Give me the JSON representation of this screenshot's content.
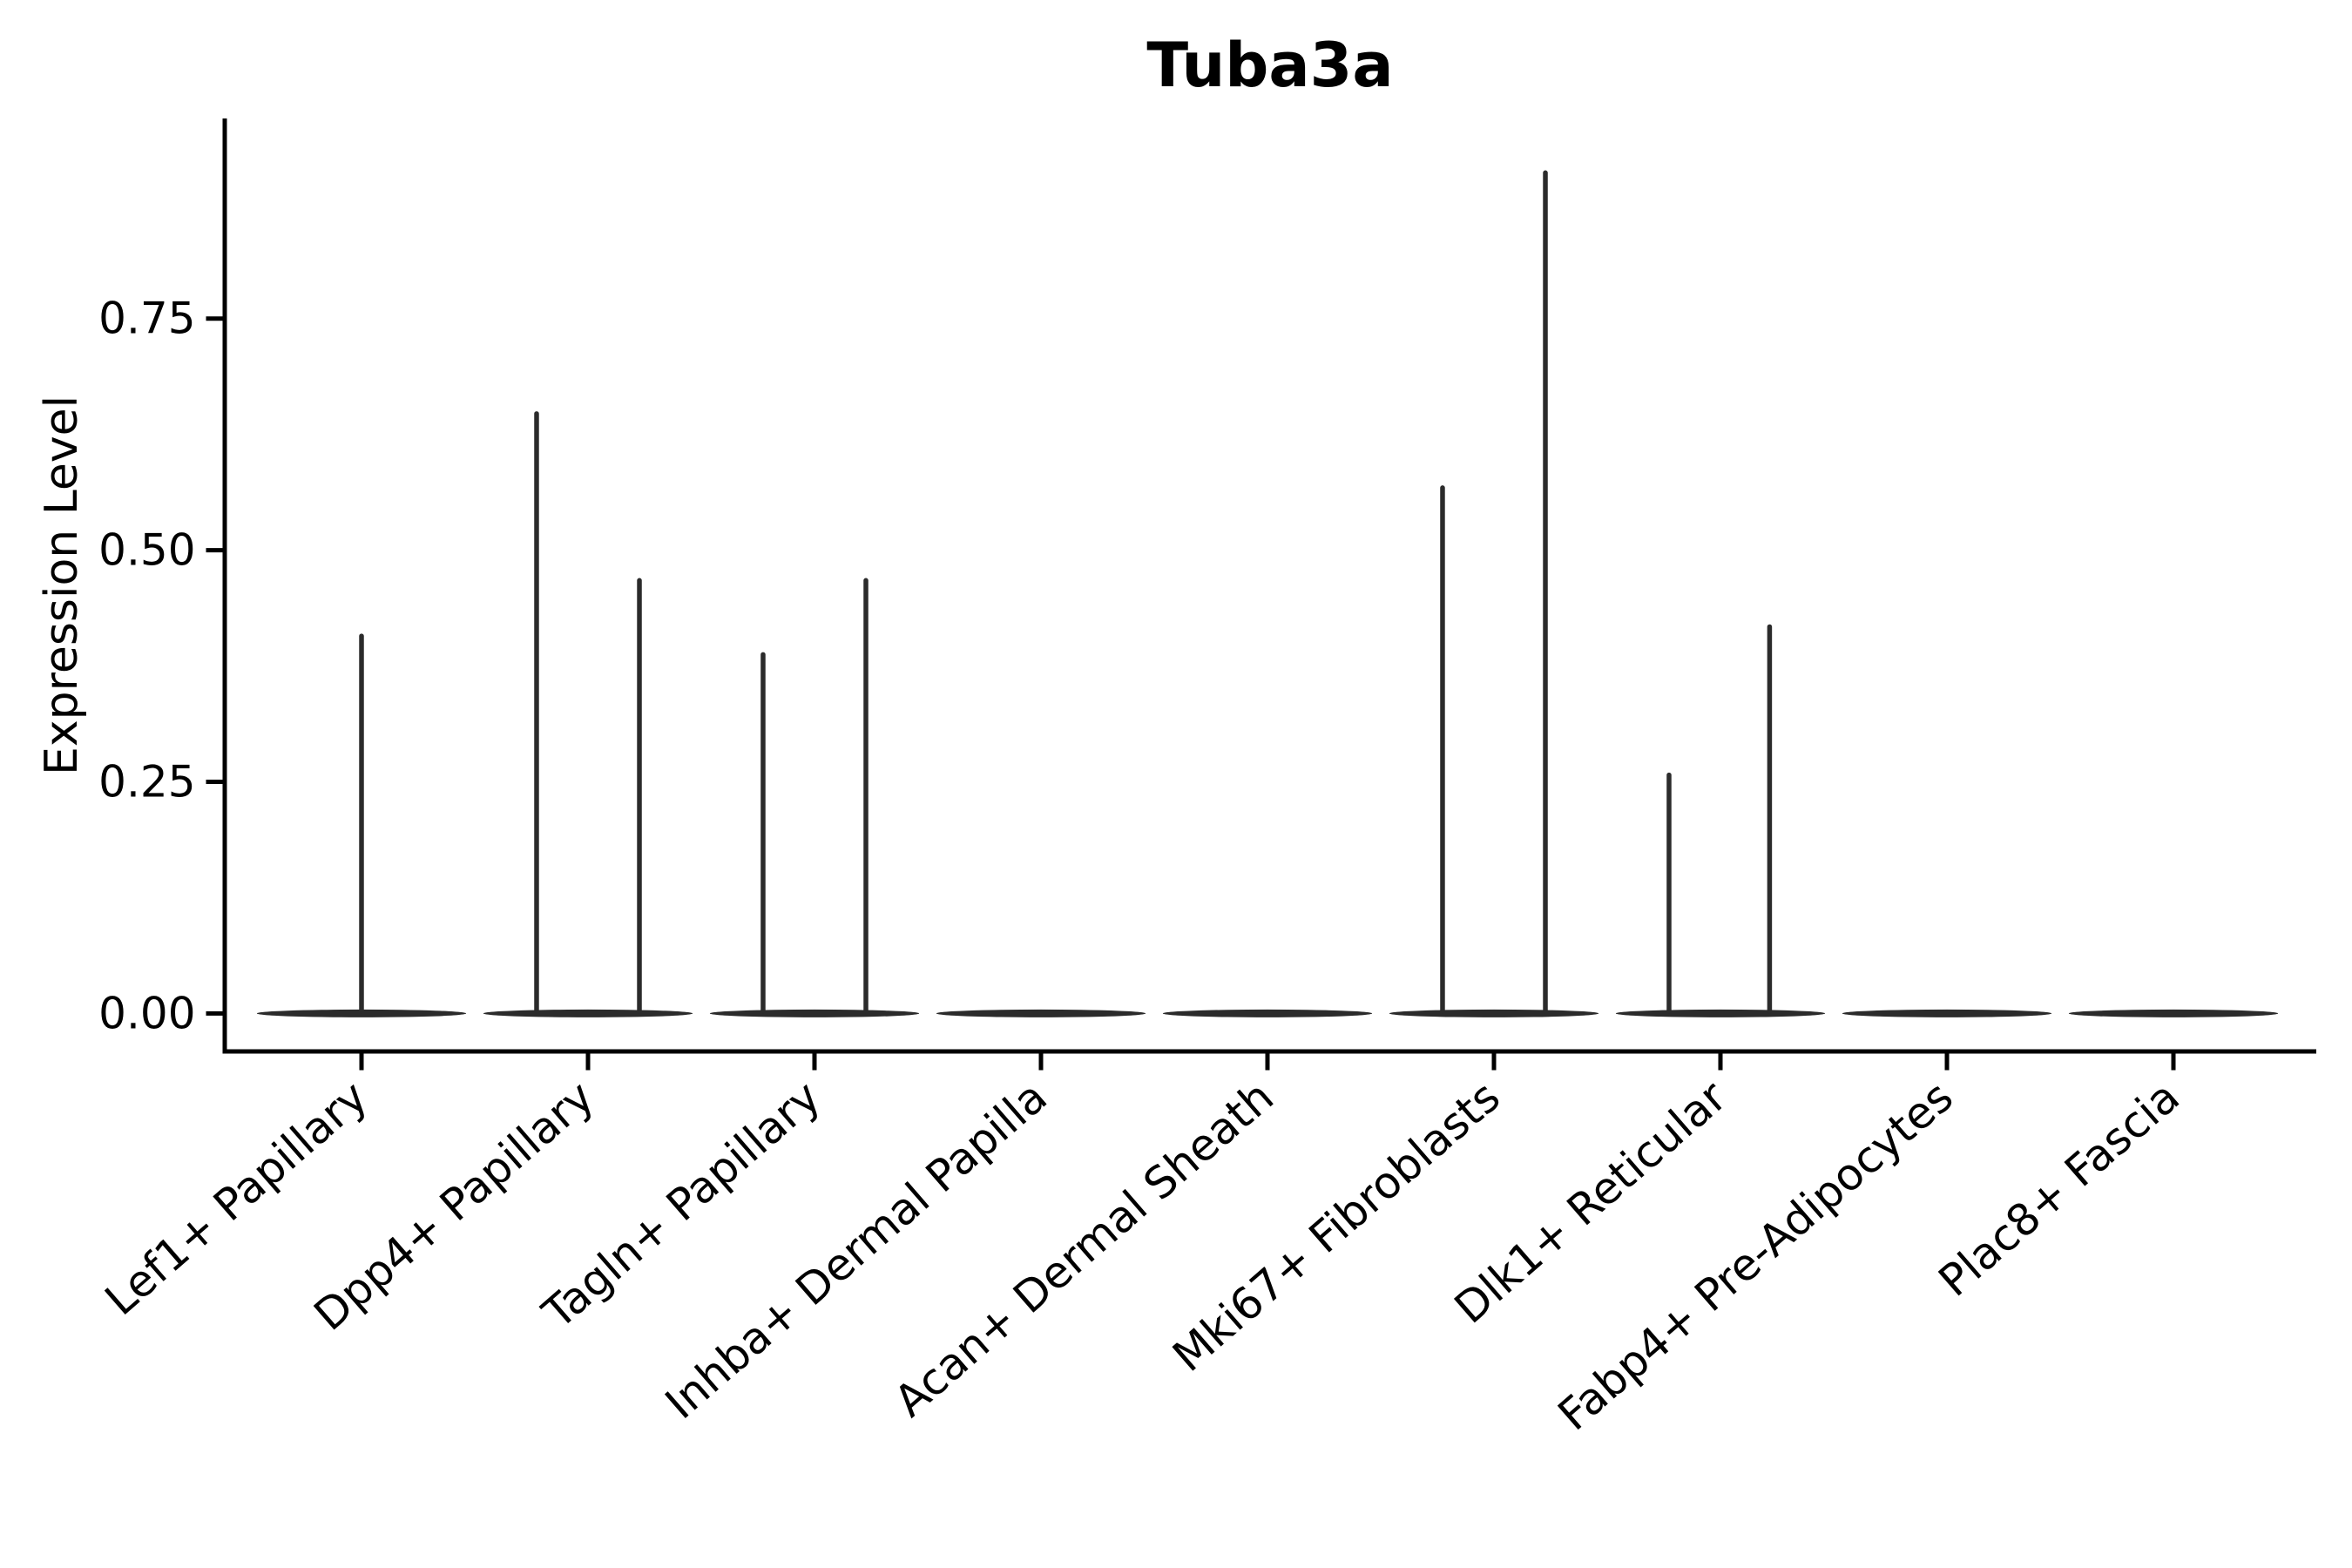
{
  "figure": {
    "background": "#ffffff"
  },
  "chart_data": {
    "type": "violin",
    "title": "Tuba3a",
    "ylabel": "Expression Level",
    "xlabel": "",
    "grid": false,
    "legend": null,
    "ylim": [
      -0.041,
      0.966
    ],
    "yticks": [
      {
        "value": 0.0,
        "label": "0.00"
      },
      {
        "value": 0.25,
        "label": "0.25"
      },
      {
        "value": 0.5,
        "label": "0.50"
      },
      {
        "value": 0.75,
        "label": "0.75"
      }
    ],
    "line_color": "#2b2b2b",
    "axis_color": "#000000",
    "text_color": "#000000",
    "x_label_rotation_deg": -41,
    "base_halfwidth": 0.462,
    "categories": [
      {
        "label": "Lef1+ Papillary",
        "violins": [
          {
            "offset": 0.0,
            "max": 0.41
          }
        ]
      },
      {
        "label": "Dpp4+ Papillary",
        "violins": [
          {
            "offset": -0.227,
            "max": 0.65
          },
          {
            "offset": 0.227,
            "max": 0.47
          }
        ]
      },
      {
        "label": "Tagln+ Papillary",
        "violins": [
          {
            "offset": -0.227,
            "max": 0.39
          },
          {
            "offset": 0.227,
            "max": 0.47
          }
        ]
      },
      {
        "label": "Inhba+ Dermal Papilla",
        "violins": []
      },
      {
        "label": "Acan+ Dermal Sheath",
        "violins": []
      },
      {
        "label": "Mki67+ Fibroblasts",
        "violins": [
          {
            "offset": -0.227,
            "max": 0.57
          },
          {
            "offset": 0.227,
            "max": 0.91
          }
        ]
      },
      {
        "label": "Dlk1+ Reticular",
        "violins": [
          {
            "offset": -0.227,
            "max": 0.26
          },
          {
            "offset": 0.217,
            "max": 0.42
          }
        ]
      },
      {
        "label": "Fabp4+ Pre-Adipocytes",
        "violins": []
      },
      {
        "label": "Plac8+ Fascia",
        "violins": []
      }
    ]
  }
}
